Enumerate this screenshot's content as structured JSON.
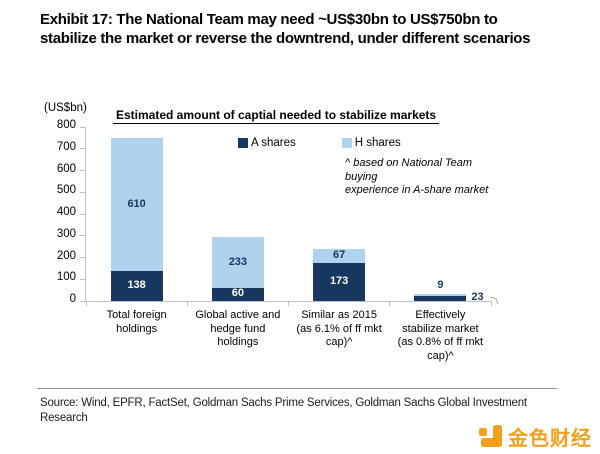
{
  "exhibit_title": "Exhibit 17: The National Team may need ~US$30bn to US$750bn to stabilize the market or reverse the downtrend, under different scenarios",
  "chart_data": {
    "type": "bar",
    "stacked": true,
    "title": "Estimated amount of captial needed to stabilize markets",
    "unit_label": "(US$bn)",
    "categories": [
      "Total foreign\nholdings",
      "Global active and\nhedge fund\nholdings",
      "Similar as 2015\n(as 6.1% of ff mkt\ncap)^",
      "Effectively\nstabilize market\n(as 0.8% of ff mkt\ncap)^"
    ],
    "series": [
      {
        "name": "A shares",
        "color": "#17375E",
        "values": [
          138,
          60,
          173,
          23
        ]
      },
      {
        "name": "H shares",
        "color": "#AFD3EC",
        "values": [
          610,
          233,
          67,
          9
        ]
      }
    ],
    "ylim": [
      0,
      800
    ],
    "ytick_step": 100,
    "grid": false,
    "legend_position": "top",
    "annotation": "^ based on National Team buying\nexperience in A-share market",
    "colors": {
      "axis": "#BFBFBF",
      "label_on_dark": "#FFFFFF",
      "label_on_light": "#17375E"
    }
  },
  "footer": {
    "source": "Source: Wind, EPFR, FactSet, Goldman Sachs Prime Services, Goldman Sachs Global Investment Research",
    "logo_text": "金色财经",
    "logo_color": "#F5A01D"
  }
}
